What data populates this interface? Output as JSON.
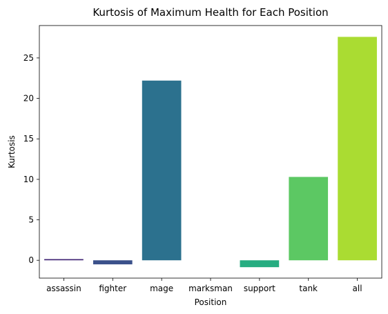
{
  "chart_data": {
    "type": "bar",
    "title": "Kurtosis of Maximum Health for Each Position",
    "xlabel": "Position",
    "ylabel": "Kurtosis",
    "categories": [
      "assassin",
      "fighter",
      "mage",
      "marksman",
      "support",
      "tank",
      "all"
    ],
    "values": [
      0.15,
      -0.5,
      22.2,
      0.0,
      -0.85,
      10.3,
      27.6
    ],
    "colors": [
      "#472c7a",
      "#3b518b",
      "#2c718e",
      "#21908d",
      "#27ad81",
      "#5cc863",
      "#aadc32"
    ],
    "yticks": [
      0,
      5,
      10,
      15,
      20,
      25
    ],
    "ylim": [
      -2.2,
      29.0
    ],
    "grid": false,
    "legend": "none"
  }
}
